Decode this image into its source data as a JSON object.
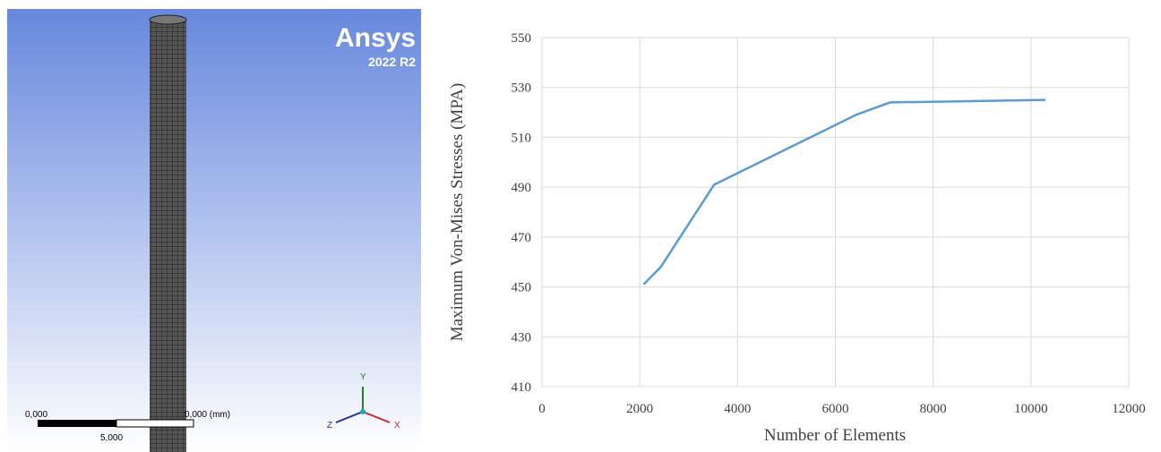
{
  "viewport": {
    "brand": "Ansys",
    "version": "2022 R2",
    "scale_start": "0,000",
    "scale_mid": "5,000",
    "scale_end": "0,000 (mm)",
    "axis_x": "X",
    "axis_y": "Y",
    "axis_z": "Z"
  },
  "chart_data": {
    "type": "line",
    "xlabel": "Number of Elements",
    "ylabel": "Maximum Von-Mises Stresses (MPA)",
    "x": [
      2080,
      2430,
      3520,
      6420,
      7120,
      10300
    ],
    "values": [
      451,
      458,
      491,
      519,
      524,
      525
    ],
    "color": "#5b9bd5",
    "xlim": [
      0,
      12000
    ],
    "xticks": [
      0,
      2000,
      4000,
      6000,
      8000,
      10000,
      12000
    ],
    "ylim": [
      410,
      550
    ],
    "yticks": [
      410,
      430,
      450,
      470,
      490,
      510,
      530,
      550
    ],
    "grid": true
  }
}
